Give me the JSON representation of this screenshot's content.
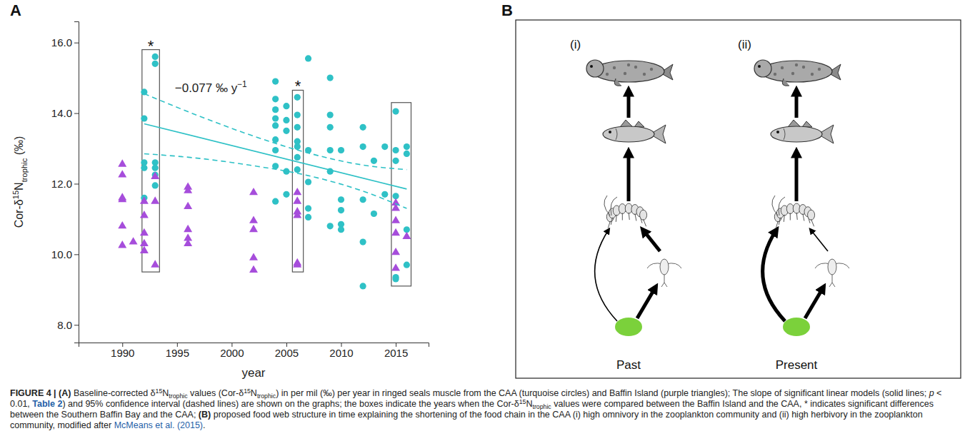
{
  "chart_data": {
    "type": "scatter",
    "panel_label": "A",
    "xlabel": "year",
    "ylabel": [
      {
        "text": "Cor-δ",
        "format": "plain"
      },
      {
        "text": "15",
        "format": "sup"
      },
      {
        "text": "N",
        "format": "plain"
      },
      {
        "text": "trophic",
        "format": "sub"
      },
      {
        "text": " (‰)",
        "format": "plain"
      }
    ],
    "xlim": [
      1986,
      2018
    ],
    "xticks": [
      1990,
      1995,
      2000,
      2005,
      2010,
      2015
    ],
    "ylim": [
      7.5,
      16.6
    ],
    "yticks": [
      {
        "value": 8,
        "label": "8.0"
      },
      {
        "value": 10,
        "label": "10.0"
      },
      {
        "value": 12,
        "label": "12.0"
      },
      {
        "value": 14,
        "label": "14.0"
      },
      {
        "value": 16,
        "label": "16.0"
      }
    ],
    "grid": false,
    "series": [
      {
        "color": "#2fc1c6",
        "marker": "circle",
        "x": [
          1992,
          1992,
          1992,
          1992,
          1992,
          1993,
          1993,
          1993,
          1993,
          1993,
          1993,
          2004,
          2004,
          2004,
          2004,
          2004,
          2004,
          2004,
          2004,
          2004,
          2005,
          2005,
          2005,
          2005,
          2005,
          2006,
          2006,
          2006,
          2006,
          2006,
          2006,
          2006,
          2007,
          2007,
          2007,
          2007,
          2007,
          2009,
          2009,
          2009,
          2009,
          2009,
          2009,
          2010,
          2010,
          2010,
          2010,
          2010,
          2012,
          2012,
          2012,
          2012,
          2012,
          2013,
          2013,
          2014,
          2014,
          2015,
          2015,
          2015,
          2015,
          2015,
          2015,
          2016,
          2016,
          2016,
          2016
        ],
        "values": [
          14.6,
          13.85,
          12.6,
          12.45,
          11.6,
          15.6,
          15.4,
          12.6,
          12.45,
          12.25,
          11.95,
          14.9,
          14.4,
          14.1,
          13.85,
          13.65,
          13.25,
          12.95,
          12.5,
          11.5,
          14.2,
          13.8,
          13.5,
          12.35,
          11.7,
          14.45,
          13.95,
          13.6,
          13.2,
          13.05,
          12.75,
          12.4,
          15.55,
          12.95,
          12.05,
          11.3,
          11.05,
          15.0,
          13.95,
          13.6,
          12.95,
          12.35,
          10.8,
          12.95,
          11.55,
          11.25,
          10.85,
          10.7,
          13.6,
          13.05,
          11.55,
          10.35,
          9.1,
          12.65,
          11.15,
          13.05,
          11.7,
          14.05,
          12.95,
          12.65,
          11.65,
          9.35,
          9.3,
          13.05,
          12.85,
          10.7,
          9.7
        ]
      },
      {
        "color": "#a64ddb",
        "marker": "triangle",
        "x": [
          1990,
          1990,
          1990,
          1990,
          1990,
          1990,
          1991,
          1992,
          1992,
          1992,
          1992,
          1992,
          1993,
          1993,
          1993,
          1996,
          1996,
          1996,
          1996,
          1996,
          1996,
          2002,
          2002,
          2002,
          2002,
          2002,
          2006,
          2006,
          2006,
          2006,
          2006,
          2006,
          2015,
          2015,
          2015,
          2015,
          2015,
          2015,
          2016
        ],
        "values": [
          12.55,
          12.25,
          11.6,
          11.55,
          10.8,
          10.25,
          10.35,
          11.5,
          11.1,
          10.6,
          10.3,
          10.1,
          12.2,
          11.5,
          9.7,
          11.9,
          11.8,
          11.35,
          10.7,
          10.45,
          10.3,
          11.75,
          10.95,
          10.7,
          9.9,
          9.55,
          11.75,
          11.5,
          11.2,
          11.1,
          9.75,
          9.7,
          11.45,
          11.3,
          10.95,
          10.6,
          10.05,
          9.6,
          10.5
        ]
      },
      {
        "type": "line",
        "color": "#2fc1c6",
        "line_style": "solid",
        "x": [
          1992,
          2016
        ],
        "values": [
          13.7,
          11.85
        ]
      },
      {
        "type": "line",
        "color": "#2fc1c6",
        "line_style": "dashed",
        "x": [
          1992,
          1997,
          2002,
          2007,
          2012,
          2016
        ],
        "values": [
          14.55,
          13.92,
          13.35,
          12.87,
          12.53,
          12.4
        ]
      },
      {
        "type": "line",
        "color": "#2fc1c6",
        "line_style": "dashed",
        "x": [
          1992,
          1997,
          2002,
          2007,
          2012,
          2016
        ],
        "values": [
          12.85,
          12.72,
          12.51,
          12.23,
          11.79,
          11.3
        ]
      }
    ],
    "annotation": [
      {
        "text": "−0.077 ‰ y",
        "format": "plain"
      },
      {
        "text": "−1",
        "format": "sup"
      }
    ],
    "boxes": [
      {
        "x": [
          1991.8,
          1993.4
        ],
        "y": [
          9.5,
          15.8
        ],
        "label": "*"
      },
      {
        "x": [
          2005.55,
          2006.55
        ],
        "y": [
          9.5,
          14.65
        ],
        "label": "*"
      },
      {
        "x": [
          2014.6,
          2016.4
        ],
        "y": [
          9.1,
          14.3
        ]
      }
    ]
  },
  "diagram": {
    "panel_label": "B",
    "columns": [
      {
        "label": "(i)",
        "caption": "Past"
      },
      {
        "label": "(ii)",
        "caption": "Present"
      }
    ]
  },
  "caption": [
    {
      "text": "FIGURE 4 | (A)",
      "format": "bold"
    },
    {
      "text": " Baseline-corrected δ",
      "format": "plain"
    },
    {
      "text": "15",
      "format": "sup"
    },
    {
      "text": "N",
      "format": "plain"
    },
    {
      "text": "trophic",
      "format": "sub"
    },
    {
      "text": " values (Cor-δ",
      "format": "plain"
    },
    {
      "text": "15",
      "format": "sup"
    },
    {
      "text": "N",
      "format": "plain"
    },
    {
      "text": "trophic",
      "format": "sub"
    },
    {
      "text": ") in per mil (‰) per year in ringed seals muscle from the CAA (turquoise circles) and Baffin Island (purple triangles); The slope of significant linear models (solid lines; ",
      "format": "plain"
    },
    {
      "text": "p",
      "format": "italic"
    },
    {
      "text": " < 0.01, ",
      "format": "plain"
    },
    {
      "text": "Table 2",
      "format": "bold-link"
    },
    {
      "text": ") and 95% confidence interval (dashed lines) are shown on the graphs; the boxes indicate the years when the Cor-δ",
      "format": "plain"
    },
    {
      "text": "15",
      "format": "sup"
    },
    {
      "text": "N",
      "format": "plain"
    },
    {
      "text": "trophic",
      "format": "sub"
    },
    {
      "text": " values were compared between the Baffin Island and the CAA, * indicates significant differences between the Southern Baffin Bay and the CAA; ",
      "format": "plain"
    },
    {
      "text": "(B)",
      "format": "bold"
    },
    {
      "text": " proposed food web structure in time explaining the shortening of the food chain in the CAA (i) high omnivory in the zooplankton community and (ii) high herbivory in the zooplankton community, modified after ",
      "format": "plain"
    },
    {
      "text": "McMeans et al. (2015)",
      "format": "link"
    },
    {
      "text": ".",
      "format": "plain"
    }
  ]
}
